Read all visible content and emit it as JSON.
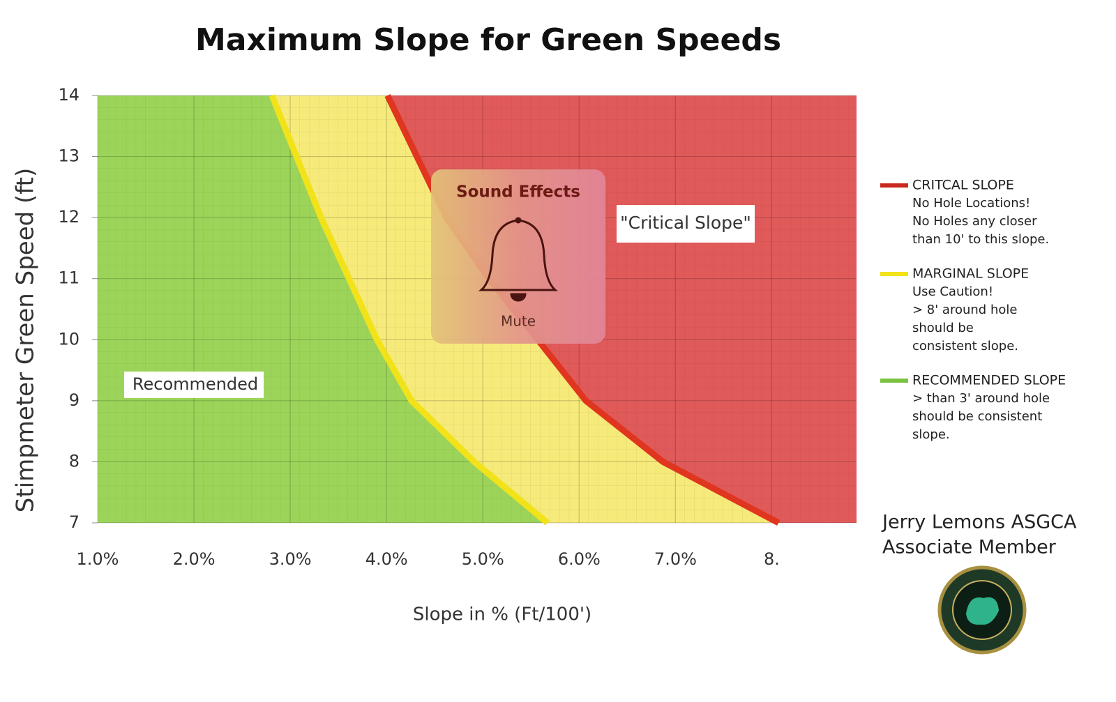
{
  "chart_data": {
    "type": "line",
    "title": "Maximum Slope for Green Speeds",
    "x_label": "Slope in % (Ft/100')",
    "y_label": "Stimpmeter  Green Speed  (ft)",
    "xlim": [
      1,
      8.88
    ],
    "ylim": [
      7,
      14
    ],
    "xticks": [
      {
        "value": 1,
        "label": "1.0%"
      },
      {
        "value": 2,
        "label": "2.0%"
      },
      {
        "value": 3,
        "label": "3.0%"
      },
      {
        "value": 4,
        "label": "4.0%"
      },
      {
        "value": 5,
        "label": "5.0%"
      },
      {
        "value": 6,
        "label": "6.0%"
      },
      {
        "value": 7,
        "label": "7.0%"
      },
      {
        "value": 8,
        "label": "8."
      }
    ],
    "yticks": [
      7,
      8,
      9,
      10,
      11,
      12,
      13,
      14
    ],
    "grid": true,
    "series": [
      {
        "color": "#f2e21a",
        "x": [
          2.81,
          3.32,
          3.9,
          4.26,
          4.91,
          5.67
        ],
        "values": [
          14,
          12,
          10,
          9,
          8,
          7
        ]
      },
      {
        "color": "#e0351f",
        "x": [
          4.01,
          4.62,
          5.06,
          5.57,
          6.07,
          6.87,
          8.07
        ],
        "values": [
          14,
          12,
          11,
          10,
          9,
          8,
          7
        ]
      }
    ],
    "region_colors": [
      "#9cd45a",
      "#f6ea7a",
      "#e05a5a"
    ],
    "annotations": [
      "Recommended",
      "\"Critical Slope\""
    ],
    "legend": [
      {
        "name": "CRITCAL SLOPE",
        "color": "#c8281e",
        "lines": [
          "No Hole Locations!",
          "No Holes any closer",
          "than 10' to this slope."
        ]
      },
      {
        "name": "MARGINAL SLOPE",
        "color": "#f2e21a",
        "lines": [
          "Use Caution!",
          "> 8' around hole",
          "should be",
          "consistent slope."
        ]
      },
      {
        "name": "RECOMMENDED SLOPE",
        "color": "#7cc242",
        "lines": [
          "> than 3' around hole",
          "should be consistent",
          " slope."
        ]
      }
    ],
    "credit": [
      "Jerry Lemons ASGCA",
      "Associate Member"
    ]
  },
  "overlay": {
    "title": "Sound Effects",
    "status": "Mute"
  }
}
